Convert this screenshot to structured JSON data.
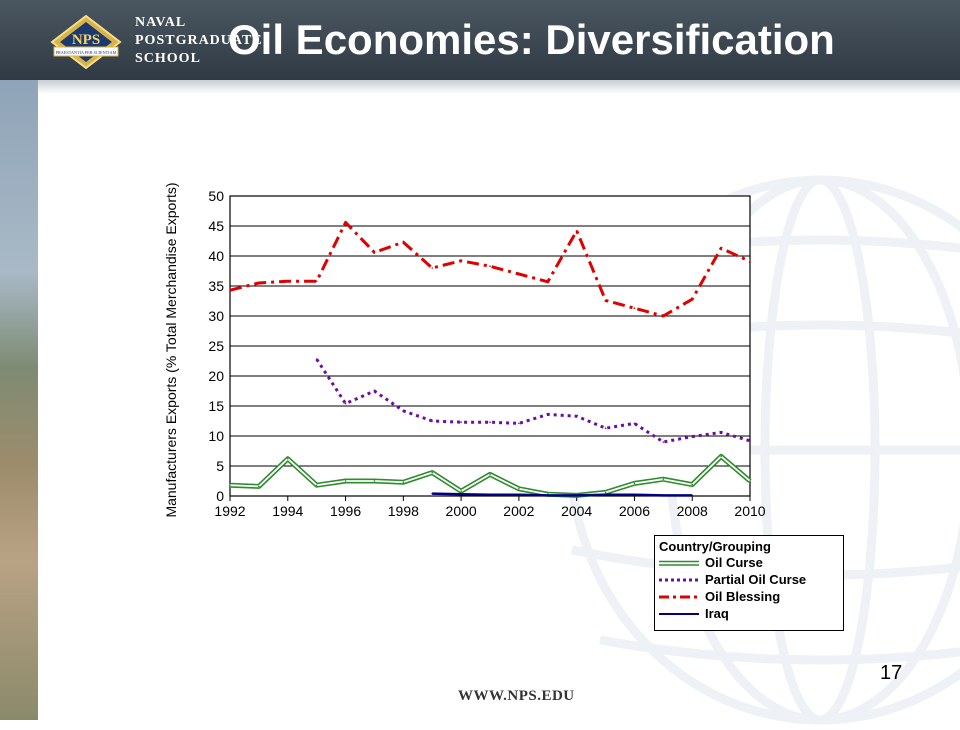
{
  "header": {
    "title": "Oil Economies: Diversification",
    "school_lines": [
      "NAVAL",
      "POSTGRADUATE",
      "SCHOOL"
    ],
    "logo_text": "NPS",
    "logo_motto": "PRAESTANTIA PER SCIENTIAM"
  },
  "footer": {
    "url": "WWW.NPS.EDU",
    "page_number": "17"
  },
  "colors": {
    "header_bg": "#36414b",
    "oil_curse": "#2e8b2e",
    "partial_oil_curse": "#6a0da0",
    "oil_blessing": "#e00000",
    "iraq": "#000080"
  },
  "chart_data": {
    "type": "line",
    "ylabel": "Manufacturers Exports (% Total Merchandise Exports)",
    "xlabel": "",
    "ylim": [
      0,
      50
    ],
    "yticks": [
      0,
      5,
      10,
      15,
      20,
      25,
      30,
      35,
      40,
      45,
      50
    ],
    "xlim": [
      1992,
      2010
    ],
    "xticks": [
      1992,
      1994,
      1996,
      1998,
      2000,
      2002,
      2004,
      2006,
      2008,
      2010
    ],
    "grid": "horizontal",
    "legend_title": "Country/Grouping",
    "legend_position": "bottom-right",
    "series": [
      {
        "name": "Oil Curse",
        "style": "double-line",
        "x": [
          1992,
          1993,
          1994,
          1995,
          1996,
          1997,
          1998,
          1999,
          2000,
          2001,
          2002,
          2003,
          2004,
          2005,
          2006,
          2007,
          2008,
          2009,
          2010
        ],
        "y": [
          1.8,
          1.6,
          6.2,
          1.8,
          2.5,
          2.5,
          2.3,
          3.9,
          0.8,
          3.6,
          1.2,
          0.3,
          0.1,
          0.6,
          2.1,
          2.8,
          1.9,
          6.6,
          2.5
        ]
      },
      {
        "name": "Partial Oil Curse",
        "style": "dotted",
        "x": [
          1995,
          1996,
          1997,
          1998,
          1999,
          2000,
          2001,
          2002,
          2003,
          2004,
          2005,
          2006,
          2007,
          2008,
          2009,
          2010
        ],
        "y": [
          22.8,
          15.4,
          17.5,
          14.2,
          12.5,
          12.3,
          12.3,
          12.1,
          13.6,
          13.3,
          11.3,
          12.1,
          9.0,
          9.9,
          10.6,
          9.2
        ]
      },
      {
        "name": "Oil Blessing",
        "style": "dash-dot",
        "x": [
          1992,
          1993,
          1994,
          1995,
          1996,
          1997,
          1998,
          1999,
          2000,
          2001,
          2002,
          2003,
          2004,
          2005,
          2006,
          2007,
          2008,
          2009,
          2010
        ],
        "y": [
          34.3,
          35.5,
          35.8,
          35.8,
          45.6,
          40.6,
          42.3,
          38.0,
          39.2,
          38.3,
          37.0,
          35.7,
          44.2,
          32.6,
          31.3,
          30.0,
          32.8,
          41.3,
          39.1
        ]
      },
      {
        "name": "Iraq",
        "style": "solid",
        "x": [
          1999,
          2000,
          2001,
          2002,
          2003,
          2004,
          2005,
          2006,
          2007,
          2008
        ],
        "y": [
          0.4,
          0.3,
          0.2,
          0.2,
          0.1,
          0.1,
          0.2,
          0.2,
          0.1,
          0.1
        ]
      }
    ]
  }
}
